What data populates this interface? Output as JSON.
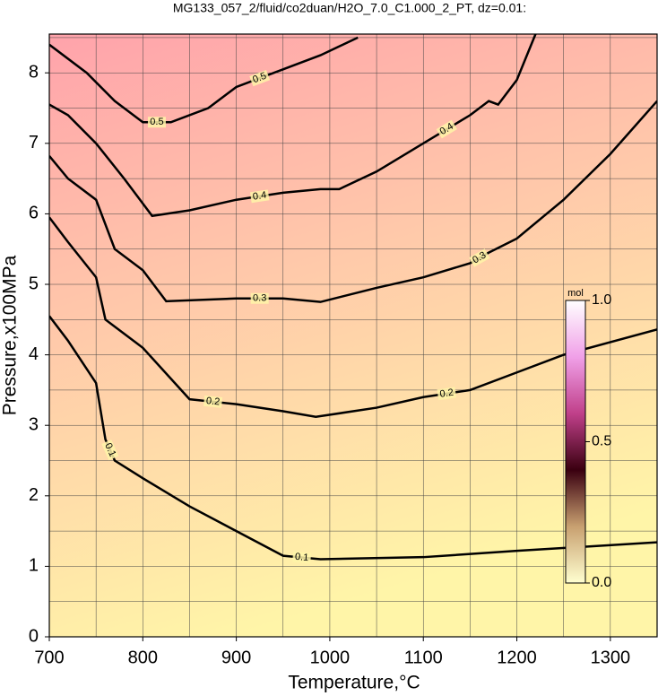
{
  "chart_data": {
    "type": "contour",
    "title": "MG133_057_2/fluid/co2duan/H2O_7.0_C1.000_2_PT, dz=0.01:",
    "x_label": "Temperature,°C",
    "y_label": "Pressure,x100MPa",
    "xlim": [
      700,
      1350
    ],
    "ylim": [
      0,
      8.55
    ],
    "xticks": [
      700,
      800,
      900,
      1000,
      1100,
      1200,
      1300
    ],
    "yticks": [
      0,
      1,
      2,
      3,
      4,
      5,
      6,
      7,
      8
    ],
    "xgrid": [
      750,
      850,
      950,
      1050,
      1150,
      1250
    ],
    "ygrid": [
      0.5,
      1.5,
      2.5,
      3.5,
      4.5,
      5.5,
      6.5,
      7.5,
      8.5
    ],
    "grid": true,
    "fill_colors": [
      "#fff5a8",
      "#ffa3ab"
    ],
    "color": "#000000",
    "series": [
      {
        "name": "0.1",
        "x": [
          700,
          720,
          740,
          750,
          760,
          770,
          800,
          850,
          900,
          950,
          990,
          1100,
          1200,
          1350
        ],
        "values": [
          4.55,
          4.2,
          3.8,
          3.6,
          2.8,
          2.5,
          2.25,
          1.85,
          1.5,
          1.15,
          1.1,
          1.13,
          1.22,
          1.34
        ]
      },
      {
        "name": "0.2",
        "x": [
          700,
          720,
          750,
          760,
          800,
          850,
          900,
          950,
          985,
          1050,
          1100,
          1150,
          1200,
          1250,
          1350
        ],
        "values": [
          5.95,
          5.6,
          5.1,
          4.5,
          4.1,
          3.37,
          3.3,
          3.2,
          3.12,
          3.25,
          3.4,
          3.5,
          3.75,
          4.0,
          4.36
        ]
      },
      {
        "name": "0.3",
        "x": [
          700,
          720,
          750,
          770,
          800,
          825,
          900,
          950,
          990,
          1050,
          1100,
          1150,
          1170,
          1200,
          1250,
          1300,
          1350
        ],
        "values": [
          6.82,
          6.5,
          6.2,
          5.5,
          5.2,
          4.76,
          4.8,
          4.8,
          4.75,
          4.95,
          5.1,
          5.3,
          5.45,
          5.65,
          6.2,
          6.85,
          7.6
        ]
      },
      {
        "name": "0.4",
        "x": [
          700,
          720,
          750,
          780,
          810,
          850,
          900,
          950,
          990,
          1010,
          1050,
          1100,
          1150,
          1170,
          1180,
          1200,
          1220
        ],
        "values": [
          7.55,
          7.4,
          7.0,
          6.5,
          5.97,
          6.05,
          6.2,
          6.3,
          6.35,
          6.35,
          6.6,
          7.0,
          7.4,
          7.6,
          7.55,
          7.9,
          8.55
        ]
      },
      {
        "name": "0.5",
        "x": [
          700,
          740,
          770,
          800,
          830,
          870,
          900,
          950,
          990,
          1030
        ],
        "values": [
          8.4,
          8.0,
          7.6,
          7.3,
          7.3,
          7.5,
          7.8,
          8.05,
          8.25,
          8.5
        ]
      }
    ],
    "colorbar": {
      "title": "mol",
      "lim": [
        0,
        1
      ],
      "ticks": [
        {
          "value": 0,
          "label": "0.0"
        },
        {
          "value": 0.5,
          "label": "0.5"
        },
        {
          "value": 1,
          "label": "1.0"
        }
      ],
      "colormap": [
        "#ffffd0",
        "#c8a070",
        "#3a0010",
        "#c0408a",
        "#f0a0e8",
        "#ffffff"
      ]
    }
  }
}
